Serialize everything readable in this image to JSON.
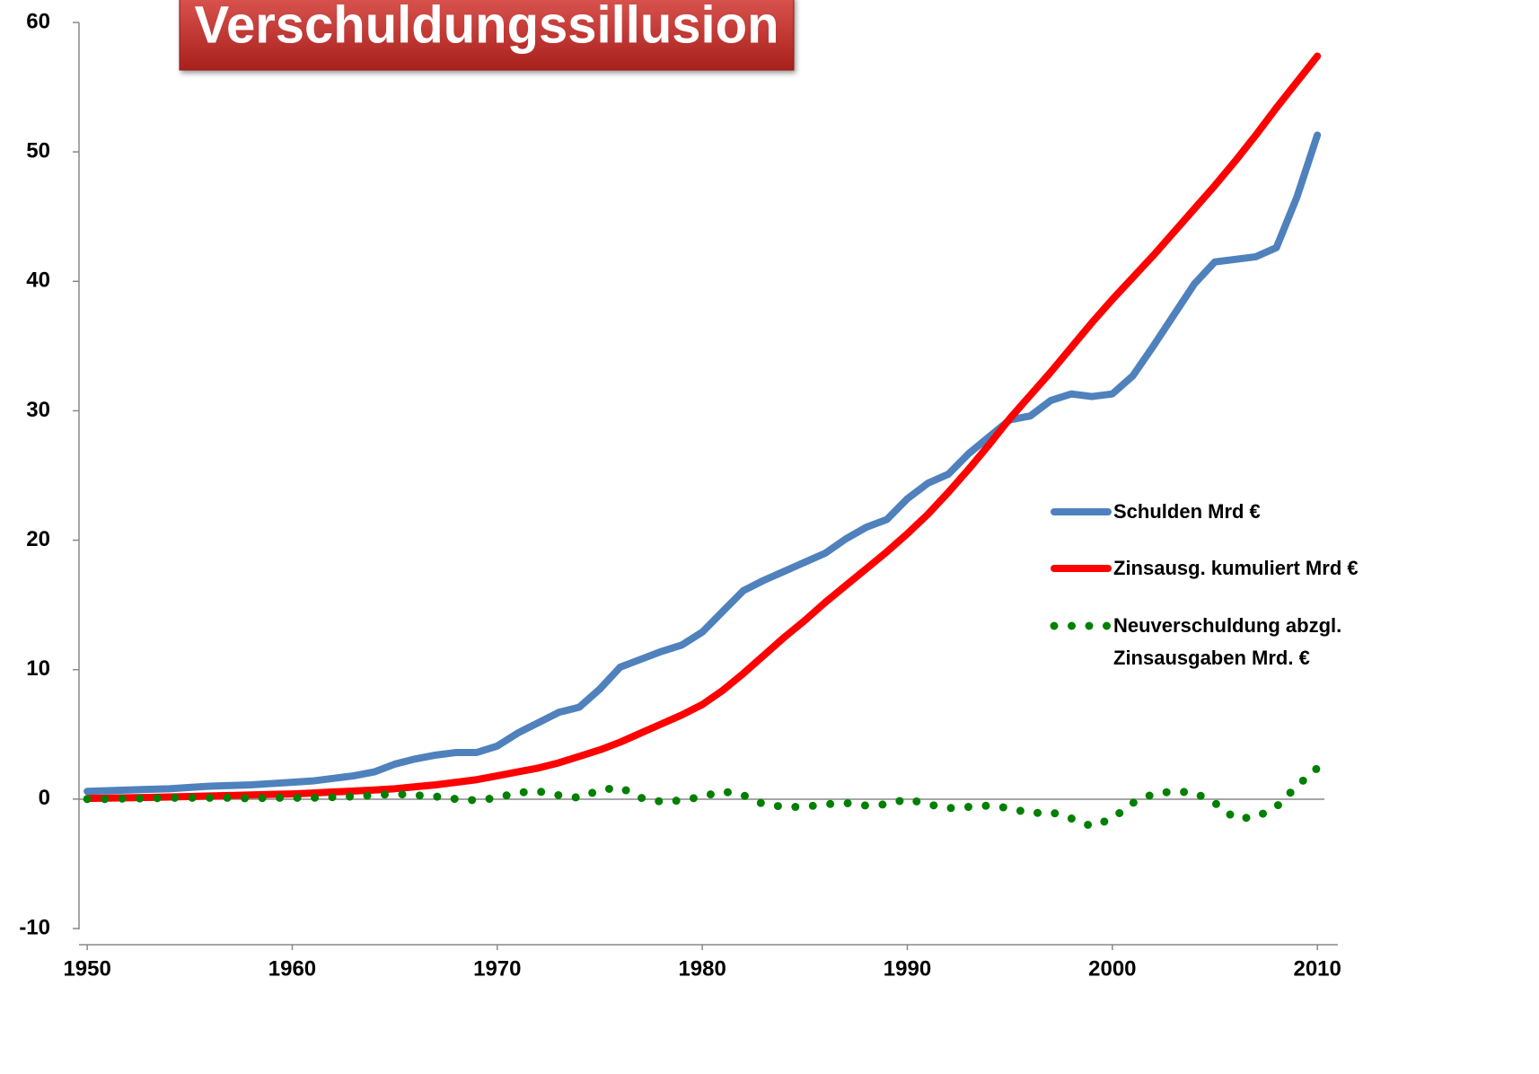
{
  "chart_data": {
    "type": "line",
    "title": "Verschuldungssillusion",
    "x": [
      1950,
      1951,
      1952,
      1953,
      1954,
      1955,
      1956,
      1957,
      1958,
      1959,
      1960,
      1961,
      1962,
      1963,
      1964,
      1965,
      1966,
      1967,
      1968,
      1969,
      1970,
      1971,
      1972,
      1973,
      1974,
      1975,
      1976,
      1977,
      1978,
      1979,
      1980,
      1981,
      1982,
      1983,
      1984,
      1985,
      1986,
      1987,
      1988,
      1989,
      1990,
      1991,
      1992,
      1993,
      1994,
      1995,
      1996,
      1997,
      1998,
      1999,
      2000,
      2001,
      2002,
      2003,
      2004,
      2005,
      2006,
      2007,
      2008,
      2009,
      2010
    ],
    "series": [
      {
        "name": "Schulden Mrd €",
        "color": "#4f81bd",
        "style": "solid",
        "values": [
          0.6,
          0.65,
          0.7,
          0.75,
          0.8,
          0.9,
          1.0,
          1.05,
          1.1,
          1.2,
          1.3,
          1.4,
          1.6,
          1.8,
          2.1,
          2.7,
          3.1,
          3.4,
          3.6,
          3.6,
          4.1,
          5.1,
          5.9,
          6.7,
          7.1,
          8.5,
          10.2,
          10.8,
          11.4,
          11.9,
          12.9,
          14.5,
          16.1,
          16.9,
          17.6,
          18.3,
          19.0,
          20.1,
          21.0,
          21.6,
          23.2,
          24.4,
          25.1,
          26.7,
          28.0,
          29.3,
          29.6,
          30.8,
          31.3,
          31.1,
          31.3,
          32.7,
          35.0,
          37.4,
          39.8,
          41.5,
          41.7,
          41.9,
          42.6,
          46.5,
          51.3
        ]
      },
      {
        "name": "Zinsausg.  kumuliert Mrd €",
        "color": "#ff0000",
        "style": "solid",
        "values": [
          0.05,
          0.08,
          0.1,
          0.13,
          0.16,
          0.2,
          0.24,
          0.28,
          0.32,
          0.36,
          0.4,
          0.47,
          0.55,
          0.62,
          0.7,
          0.8,
          0.95,
          1.1,
          1.3,
          1.5,
          1.8,
          2.1,
          2.4,
          2.8,
          3.3,
          3.8,
          4.4,
          5.1,
          5.8,
          6.5,
          7.3,
          8.4,
          9.7,
          11.1,
          12.5,
          13.8,
          15.2,
          16.5,
          17.8,
          19.1,
          20.5,
          22.0,
          23.7,
          25.5,
          27.4,
          29.4,
          31.2,
          33.0,
          34.9,
          36.8,
          38.6,
          40.3,
          42.0,
          43.8,
          45.6,
          47.4,
          49.3,
          51.3,
          53.4,
          55.4,
          57.4
        ]
      },
      {
        "name": "Neuverschuldung abzgl. Zinsausgaben Mrd. €",
        "color": "#008000",
        "style": "dotted",
        "values": [
          0,
          0,
          0.05,
          0.05,
          0.1,
          0.1,
          0.1,
          0.1,
          0.05,
          0.1,
          0.1,
          0.1,
          0.15,
          0.2,
          0.3,
          0.4,
          0.3,
          0.2,
          0.0,
          -0.1,
          0.1,
          0.5,
          0.6,
          0.3,
          0.1,
          0.7,
          0.9,
          0.1,
          -0.2,
          -0.1,
          0.2,
          0.6,
          0.3,
          -0.4,
          -0.6,
          -0.6,
          -0.4,
          -0.3,
          -0.5,
          -0.4,
          0.0,
          -0.4,
          -0.7,
          -0.6,
          -0.5,
          -0.7,
          -1.1,
          -1.0,
          -1.5,
          -2.1,
          -1.5,
          -0.3,
          0.4,
          0.6,
          0.5,
          -0.3,
          -1.5,
          -1.4,
          -0.6,
          1.0,
          2.4
        ]
      }
    ],
    "xlim": [
      1949.6,
      2011
    ],
    "xticks": [
      1950,
      1960,
      1970,
      1980,
      1990,
      2000,
      2010
    ],
    "ylim": [
      -10,
      60
    ],
    "yticks": [
      -10,
      0,
      10,
      20,
      30,
      40,
      50,
      60
    ],
    "legend": "right"
  }
}
